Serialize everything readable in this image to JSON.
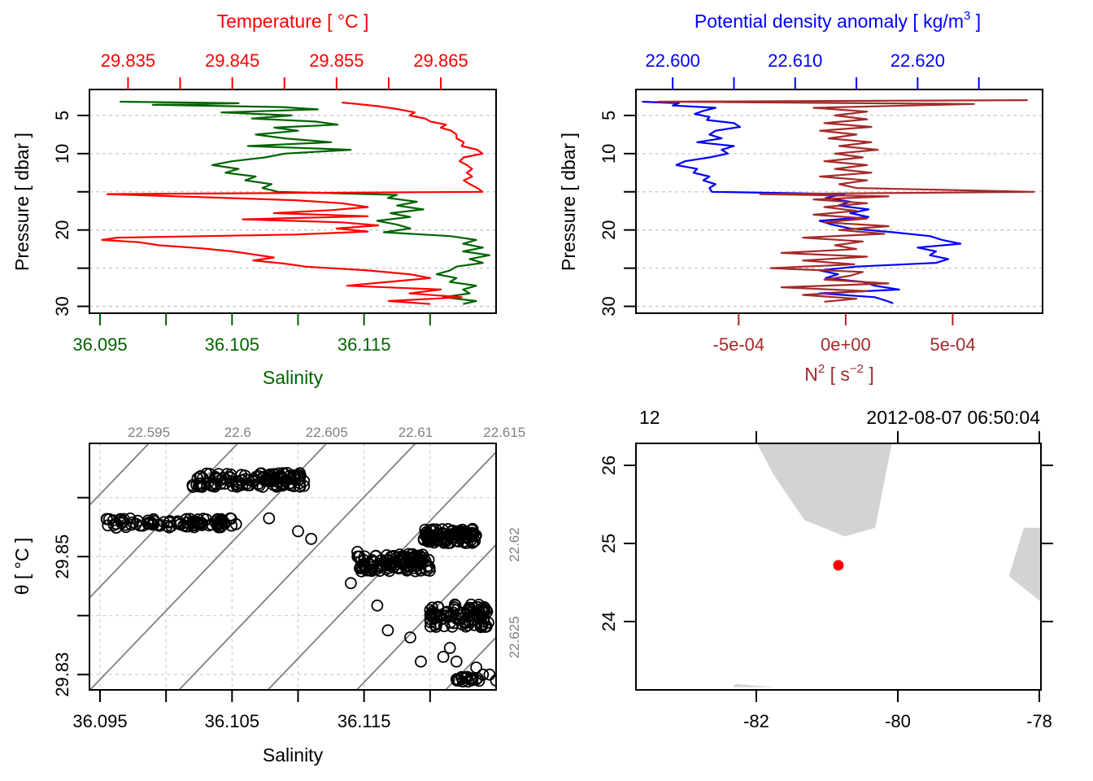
{
  "chart_data": [
    {
      "id": "profile-ts",
      "type": "line",
      "ylabel": "Pressure [ dbar ]",
      "y_reversed": true,
      "ylim": [
        1.6,
        30.9
      ],
      "yticks": [
        5,
        10,
        15,
        20,
        25,
        30
      ],
      "yticklabels": [
        "5",
        "10",
        "",
        "20",
        "",
        "30"
      ],
      "grid": "horizontal-dashed",
      "top_axis": {
        "label": "Temperature [ °C ]",
        "color": "#ff0000",
        "range": [
          29.8313,
          29.8703
        ],
        "ticks": [
          29.835,
          29.84,
          29.845,
          29.85,
          29.855,
          29.86,
          29.865
        ],
        "ticklabels": [
          "29.835",
          "",
          "29.845",
          "",
          "29.855",
          "",
          "29.865"
        ]
      },
      "bottom_axis": {
        "label": "Salinity",
        "color": "#006400",
        "range": [
          36.0942,
          36.125
        ],
        "ticks": [
          36.095,
          36.1,
          36.105,
          36.11,
          36.115,
          36.12
        ],
        "ticklabels": [
          "36.095",
          "",
          "36.105",
          "",
          "36.115",
          ""
        ]
      },
      "series": [
        {
          "name": "Salinity",
          "color": "#006400",
          "axis": "bottom",
          "pressure": [
            3.2,
            3.4,
            3.6,
            3.9,
            4.2,
            4.6,
            5.0,
            5.4,
            5.8,
            6.2,
            6.6,
            7.0,
            7.5,
            8.0,
            8.5,
            9.0,
            9.5,
            10.0,
            10.5,
            11.0,
            11.5,
            12.0,
            12.5,
            13.0,
            13.5,
            14.0,
            14.5,
            15.0,
            15.4,
            15.8,
            16.3,
            16.8,
            17.3,
            17.8,
            18.3,
            18.8,
            19.3,
            19.8,
            20.3,
            20.8,
            21.3,
            21.8,
            22.3,
            22.8,
            23.3,
            23.8,
            24.3,
            24.8,
            25.3,
            25.8,
            26.3,
            26.8,
            27.3,
            27.8,
            28.3,
            28.8,
            29.3,
            29.7
          ],
          "values": [
            36.0965,
            36.1055,
            36.099,
            36.1088,
            36.1115,
            36.1042,
            36.1095,
            36.1065,
            36.1113,
            36.113,
            36.1082,
            36.11,
            36.1068,
            36.109,
            36.1125,
            36.1062,
            36.114,
            36.109,
            36.1075,
            36.105,
            36.1035,
            36.1055,
            36.1045,
            36.1068,
            36.106,
            36.108,
            36.1073,
            36.1085,
            36.1175,
            36.1168,
            36.119,
            36.1175,
            36.1195,
            36.117,
            36.1185,
            36.116,
            36.1175,
            36.1185,
            36.1165,
            36.1215,
            36.1235,
            36.1225,
            36.124,
            36.1225,
            36.1245,
            36.123,
            36.124,
            36.122,
            36.1215,
            36.1205,
            36.122,
            36.1215,
            36.1235,
            36.1225,
            36.123,
            36.121,
            36.1235,
            36.1225
          ]
        },
        {
          "name": "Temperature",
          "color": "#ff0000",
          "axis": "top",
          "pressure": [
            3.3,
            3.5,
            3.8,
            4.2,
            4.6,
            5.0,
            5.4,
            5.8,
            6.2,
            6.6,
            7.0,
            7.5,
            8.0,
            8.5,
            9.0,
            9.5,
            10.0,
            10.5,
            11.0,
            11.5,
            12.0,
            12.5,
            13.0,
            13.5,
            14.0,
            14.5,
            15.0,
            15.3,
            15.7,
            16.1,
            16.5,
            17.0,
            17.4,
            17.8,
            18.2,
            18.6,
            19.0,
            19.4,
            19.8,
            20.2,
            20.6,
            21.0,
            21.3,
            21.6,
            22.0,
            22.4,
            22.8,
            23.2,
            23.6,
            24.0,
            24.4,
            24.8,
            25.3,
            25.8,
            26.3,
            26.8,
            27.3,
            27.8,
            28.3,
            28.8,
            29.3,
            29.7
          ],
          "values": [
            29.8555,
            29.857,
            29.859,
            29.861,
            29.8625,
            29.862,
            29.8635,
            29.864,
            29.8655,
            29.865,
            29.866,
            29.8665,
            29.8665,
            29.8672,
            29.867,
            29.8685,
            29.869,
            29.8672,
            29.8668,
            29.8675,
            29.868,
            29.8675,
            29.868,
            29.8672,
            29.8678,
            29.8685,
            29.869,
            29.833,
            29.842,
            29.851,
            29.8555,
            29.858,
            29.8545,
            29.849,
            29.858,
            29.846,
            29.8555,
            29.859,
            29.855,
            29.858,
            29.851,
            29.834,
            29.8325,
            29.836,
            29.838,
            29.842,
            29.845,
            29.847,
            29.849,
            29.847,
            29.85,
            29.852,
            29.858,
            29.862,
            29.864,
            29.86,
            29.856,
            29.865,
            29.862,
            29.867,
            29.86,
            29.864
          ]
        }
      ]
    },
    {
      "id": "profile-density-n2",
      "type": "line",
      "ylabel": "Pressure [ dbar ]",
      "y_reversed": true,
      "ylim": [
        1.6,
        30.9
      ],
      "yticks": [
        5,
        10,
        15,
        20,
        25,
        30
      ],
      "yticklabels": [
        "5",
        "10",
        "",
        "20",
        "",
        "30"
      ],
      "grid": "horizontal-dashed",
      "top_axis": {
        "label": "Potential density anomaly [ kg/m",
        "label_sup": "3",
        "label_end": " ]",
        "color": "#0000ff",
        "range": [
          22.597,
          22.6302
        ],
        "ticks": [
          22.6,
          22.605,
          22.61,
          22.615,
          22.62,
          22.625
        ],
        "ticklabels": [
          "22.600",
          "",
          "22.610",
          "",
          "22.620",
          ""
        ]
      },
      "bottom_axis": {
        "label": "N",
        "label_sup": "2",
        "label_end": " [ s",
        "label_sup2": "−2",
        "label_end2": " ]",
        "color": "#a52a2a",
        "range": [
          -0.00098,
          0.00092
        ],
        "ticks": [
          -0.0005,
          0,
          0.0005
        ],
        "ticklabels": [
          "-5e-04",
          "0e+00",
          "5e-04"
        ]
      },
      "series": [
        {
          "name": "Potential density anomaly",
          "color": "#0000ff",
          "axis": "top",
          "pressure": [
            3.2,
            3.4,
            3.7,
            4.0,
            4.4,
            4.8,
            5.2,
            5.6,
            6.0,
            6.5,
            7.0,
            7.5,
            8.0,
            8.5,
            9.0,
            9.5,
            10.0,
            10.5,
            11.0,
            11.5,
            12.0,
            12.5,
            13.0,
            13.5,
            14.0,
            14.5,
            15.0,
            15.3,
            15.8,
            16.3,
            16.8,
            17.3,
            17.8,
            18.3,
            18.8,
            19.3,
            19.8,
            20.3,
            20.8,
            21.3,
            21.8,
            22.3,
            22.8,
            23.3,
            23.8,
            24.3,
            24.8,
            25.3,
            25.8,
            26.3,
            26.8,
            27.3,
            27.8,
            28.3,
            28.8,
            29.3,
            29.6
          ],
          "values": [
            22.5975,
            22.6005,
            22.6,
            22.6035,
            22.6025,
            22.6018,
            22.603,
            22.6028,
            22.605,
            22.6055,
            22.6035,
            22.603,
            22.604,
            22.602,
            22.605,
            22.604,
            22.6045,
            22.603,
            22.601,
            22.6003,
            22.602,
            22.6017,
            22.603,
            22.6025,
            22.6035,
            22.603,
            22.6032,
            22.614,
            22.6125,
            22.6145,
            22.6135,
            22.616,
            22.6145,
            22.616,
            22.612,
            22.613,
            22.6145,
            22.618,
            22.621,
            22.622,
            22.6235,
            22.62,
            22.6215,
            22.621,
            22.6225,
            22.6215,
            22.615,
            22.612,
            22.6135,
            22.6125,
            22.6155,
            22.6165,
            22.6185,
            22.612,
            22.6165,
            22.6175,
            22.618
          ]
        },
        {
          "name": "N2",
          "color": "#a52a2a",
          "axis": "bottom",
          "pressure": [
            3.0,
            3.2,
            3.5,
            4.0,
            4.5,
            5.0,
            5.5,
            6.0,
            6.5,
            7.0,
            7.5,
            8.0,
            8.5,
            9.0,
            9.5,
            10.0,
            10.5,
            11.0,
            11.5,
            12.0,
            12.5,
            13.0,
            13.5,
            14.0,
            14.5,
            15.0,
            15.3,
            15.6,
            16.0,
            16.5,
            17.0,
            17.5,
            18.0,
            18.5,
            19.0,
            19.5,
            20.0,
            20.5,
            21.0,
            21.5,
            22.0,
            22.5,
            23.0,
            23.5,
            24.0,
            24.5,
            25.0,
            25.5,
            26.0,
            26.5,
            27.0,
            27.5,
            28.0,
            28.5,
            29.0,
            29.4
          ],
          "values": [
            0.00085,
            -0.00088,
            0.0006,
            -0.00015,
            0.0001,
            -5e-05,
            0.0001,
            -0.0001,
            0.00012,
            -0.00012,
            5e-05,
            -8e-05,
            0.00012,
            -3e-05,
            0.00015,
            -5e-05,
            8e-05,
            -0.0001,
            0.0001,
            -5e-05,
            0.00012,
            -0.00012,
            0.0001,
            -3e-05,
            5e-05,
            0.00088,
            -0.0004,
            0.0002,
            -0.00015,
            0.0001,
            -0.0001,
            5e-05,
            -0.00015,
            0.0001,
            -0.0001,
            0.0002,
            -3e-05,
            0.00018,
            -0.0002,
            8e-05,
            -5e-05,
            5e-05,
            -0.0003,
            0.0001,
            -0.0002,
            4e-05,
            -0.00035,
            8e-05,
            2e-05,
            -0.0001,
            0.0002,
            -0.0003,
            0.0001,
            -0.0002,
            5e-05,
            -0.0001
          ]
        }
      ]
    },
    {
      "id": "ts-diagram",
      "type": "scatter",
      "xlabel": "Salinity",
      "ylabel": "θ [ °C ]",
      "xlim": [
        36.0942,
        36.125
      ],
      "ylim": [
        29.8274,
        29.8692
      ],
      "xticks": [
        36.095,
        36.1,
        36.105,
        36.11,
        36.115,
        36.12
      ],
      "xticklabels": [
        "36.095",
        "",
        "36.105",
        "",
        "36.115",
        ""
      ],
      "yticks": [
        29.83,
        29.84,
        29.85,
        29.86
      ],
      "yticklabels": [
        "29.83",
        "",
        "29.85",
        ""
      ],
      "grid": "dashed",
      "marker": "open-circle",
      "isopycnals": {
        "color": "#808080",
        "levels": [
          22.59,
          22.595,
          22.6,
          22.605,
          22.61,
          22.615,
          22.62,
          22.625,
          22.63
        ],
        "labels_top": [
          "22.595",
          "22.6",
          "22.605",
          "22.61",
          "22.615"
        ],
        "labels_right": [
          "22.62",
          "22.625"
        ]
      },
      "clusters": [
        {
          "s_range": [
            36.0955,
            36.105
          ],
          "t_center": 29.8557,
          "t_spread": 0.0008,
          "slope": 0.00012,
          "n": 90
        },
        {
          "s_range": [
            36.102,
            36.1105
          ],
          "t_center": 29.863,
          "t_spread": 0.0012,
          "slope": 0.00035,
          "n": 120
        },
        {
          "s_range": [
            36.1145,
            36.12
          ],
          "t_center": 29.849,
          "t_spread": 0.0015,
          "slope": -0.0011,
          "n": 110
        },
        {
          "s_range": [
            36.1195,
            36.1235
          ],
          "t_center": 29.8535,
          "t_spread": 0.0012,
          "slope": -0.0016,
          "n": 100
        },
        {
          "s_range": [
            36.12,
            36.1245
          ],
          "t_center": 29.84,
          "t_spread": 0.002,
          "slope": -0.0004,
          "n": 90
        },
        {
          "s_range": [
            36.122,
            36.1238
          ],
          "t_center": 29.8292,
          "t_spread": 0.0004,
          "slope": 0.0,
          "n": 20
        }
      ],
      "outliers": [
        [
          36.11,
          29.8543
        ],
        [
          36.1053,
          29.8555
        ],
        [
          36.1078,
          29.8565
        ],
        [
          36.111,
          29.853
        ],
        [
          36.1145,
          29.8508
        ],
        [
          36.1148,
          29.8475
        ],
        [
          36.114,
          29.8455
        ],
        [
          36.116,
          29.8417
        ],
        [
          36.1168,
          29.8375
        ],
        [
          36.1185,
          29.8363
        ],
        [
          36.1193,
          29.8322
        ],
        [
          36.122,
          29.8322
        ],
        [
          36.124,
          29.83
        ],
        [
          36.1245,
          29.83
        ],
        [
          36.1235,
          29.8312
        ],
        [
          36.125,
          29.829
        ],
        [
          36.121,
          29.833
        ],
        [
          36.1215,
          29.8345
        ]
      ]
    },
    {
      "id": "station-map",
      "type": "scatter",
      "xlim": [
        -83.7,
        -77.95
      ],
      "ylim": [
        23.16,
        26.3
      ],
      "xticks": [
        -82,
        -80,
        -78
      ],
      "xticklabels": [
        "-82",
        "-80",
        "-78"
      ],
      "yticks": [
        24,
        25,
        26
      ],
      "yticklabels": [
        "24",
        "25",
        "26"
      ],
      "top_labels": [
        "12",
        "2012-08-07 06:50:04"
      ],
      "land_color": "#d3d3d3",
      "station": {
        "lon": -80.84,
        "lat": 24.72,
        "color": "#ff0000"
      },
      "land": [
        [
          [
            -82.0,
            26.3
          ],
          [
            -81.75,
            25.87
          ],
          [
            -81.32,
            25.3
          ],
          [
            -80.75,
            25.09
          ],
          [
            -80.32,
            25.2
          ],
          [
            -80.08,
            26.3
          ]
        ],
        [
          [
            -78.0,
            25.2
          ],
          [
            -77.95,
            25.2
          ],
          [
            -77.95,
            24.2
          ],
          [
            -78.0,
            24.27
          ],
          [
            -78.43,
            24.58
          ],
          [
            -78.22,
            25.2
          ]
        ],
        [
          [
            -82.33,
            23.16
          ],
          [
            -82.3,
            23.2
          ],
          [
            -81.75,
            23.16
          ]
        ]
      ]
    }
  ]
}
